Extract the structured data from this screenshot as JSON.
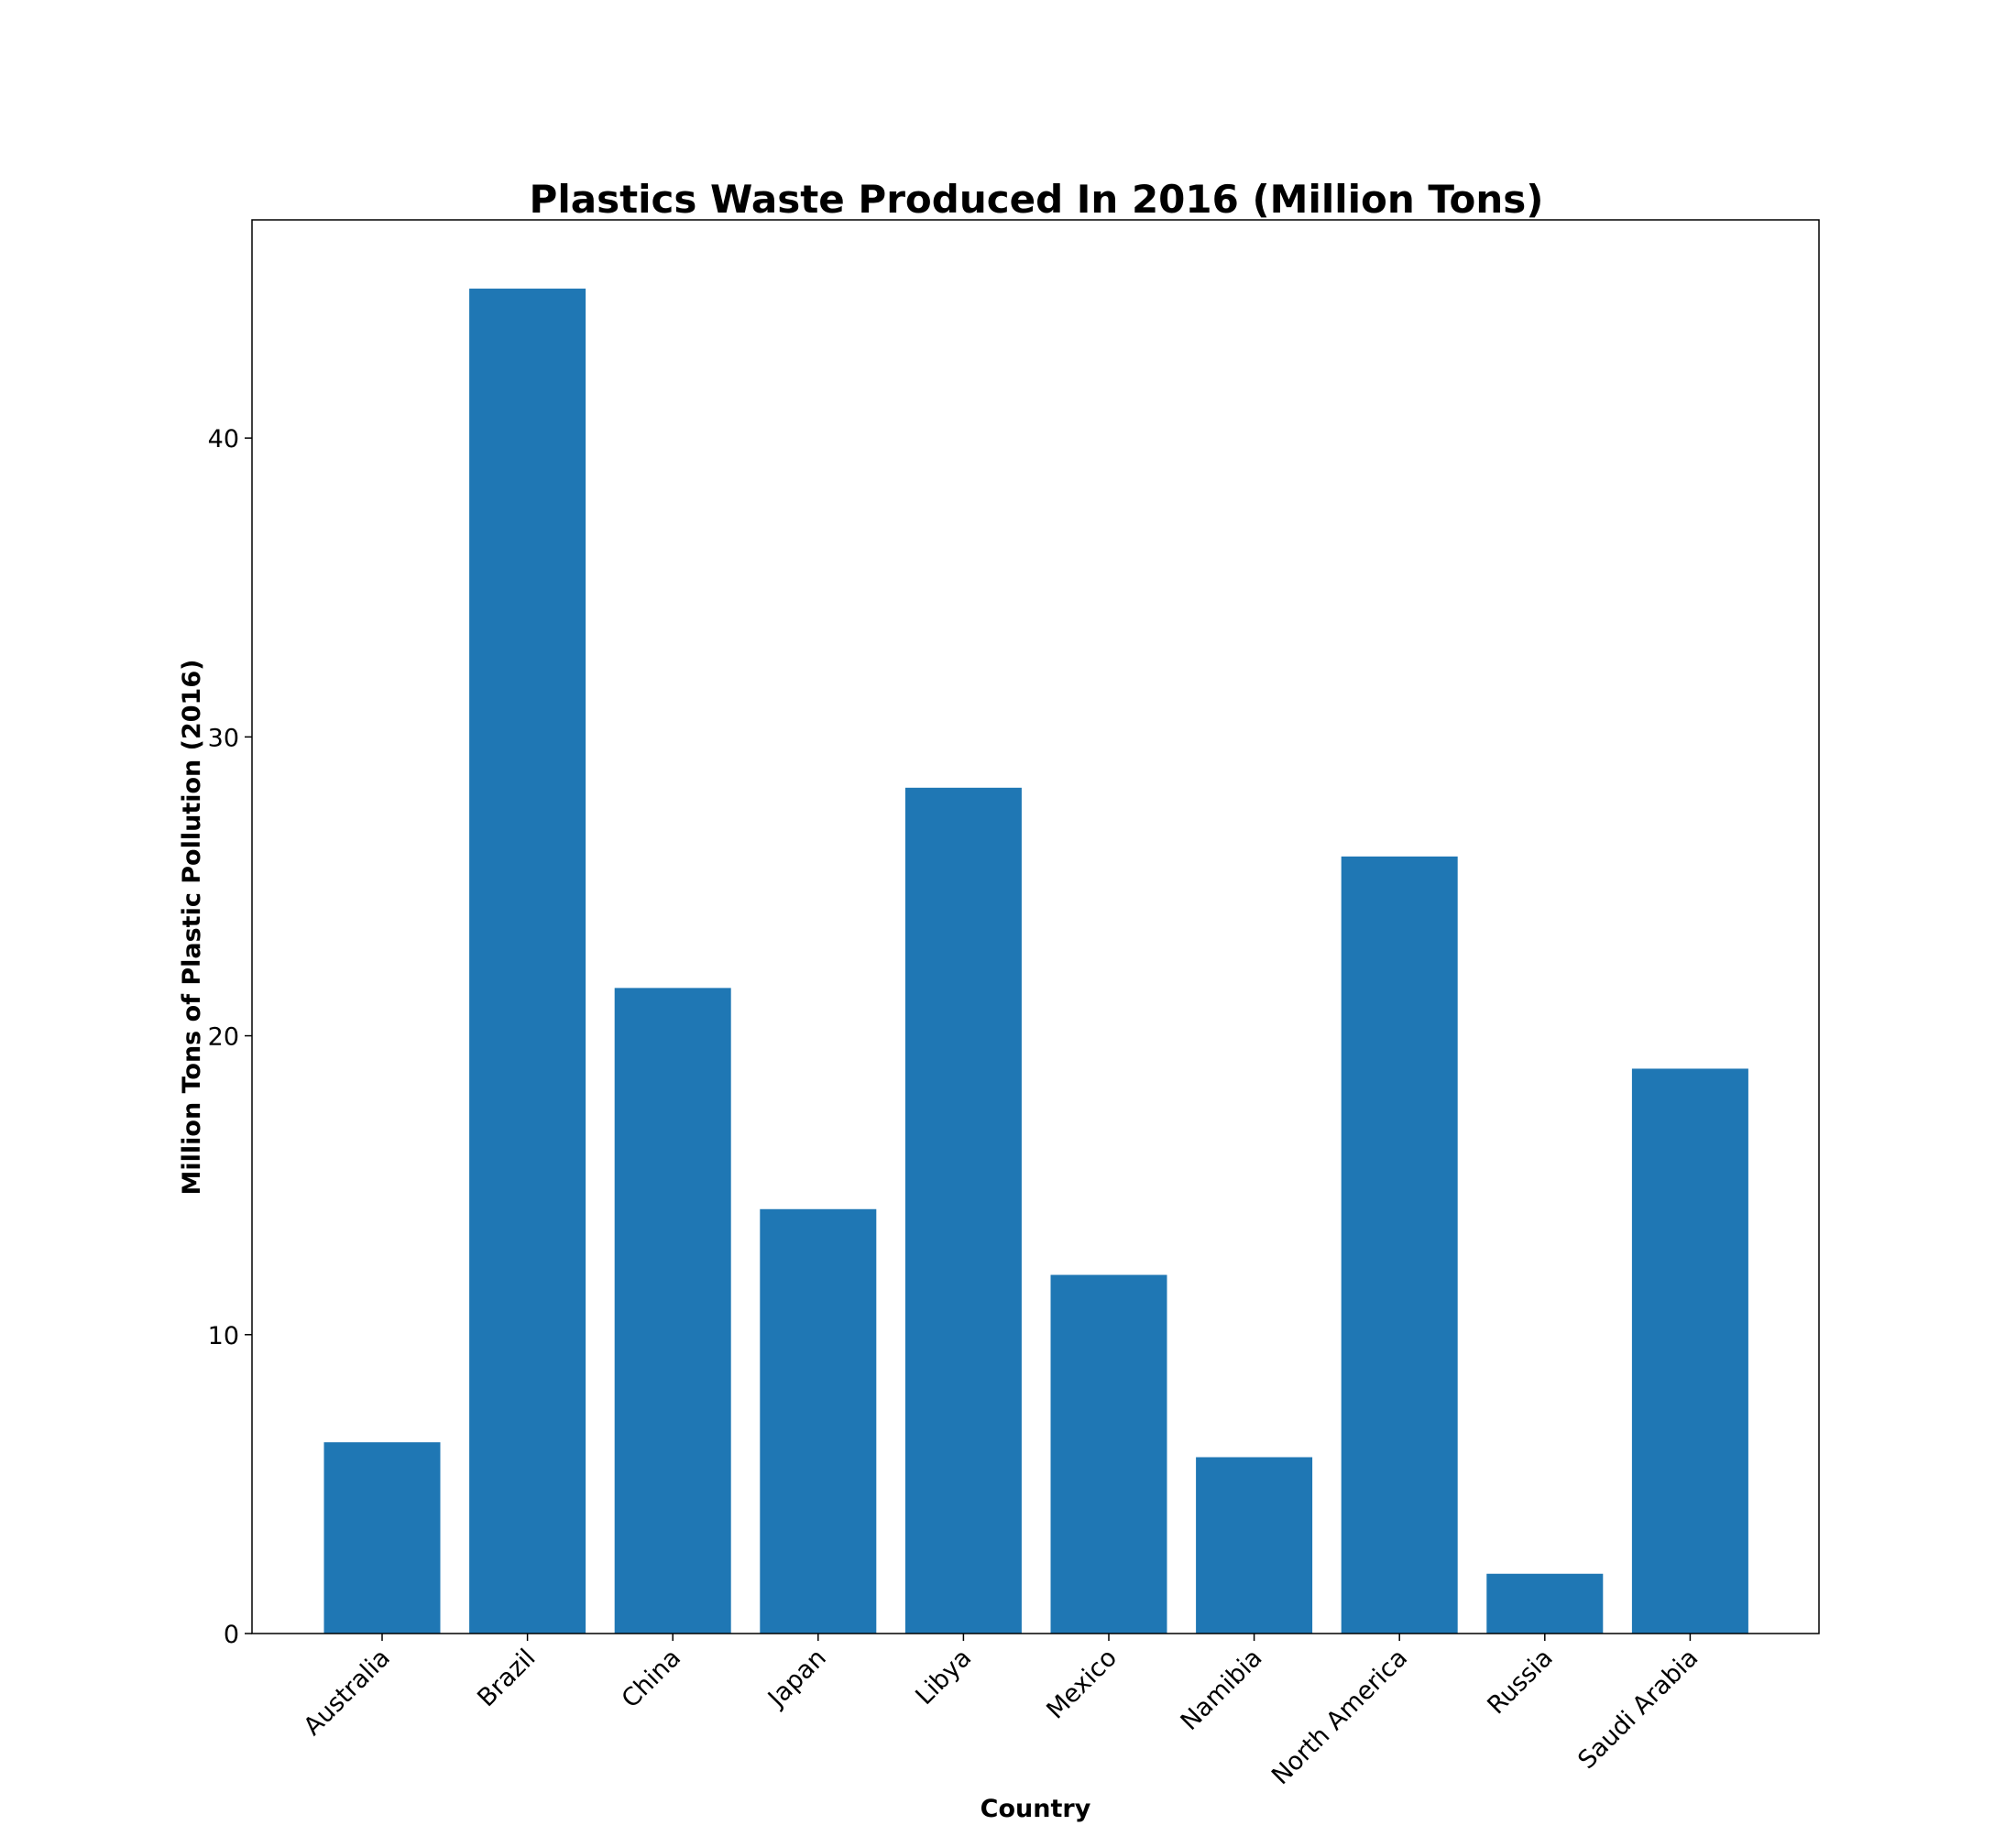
{
  "chart_data": {
    "type": "bar",
    "title": "Plastics Waste Produced In 2016 (Million Tons)",
    "xlabel": "Country",
    "ylabel": "Million Tons of Plastic Pollution (2016)",
    "categories": [
      "Australia",
      "Brazil",
      "China",
      "Japan",
      "Libya",
      "Mexico",
      "Namibia",
      "North America",
      "Russia",
      "Saudi Arabia"
    ],
    "values": [
      6.4,
      45.0,
      21.6,
      14.2,
      28.3,
      12.0,
      5.9,
      26.0,
      2.0,
      18.9
    ],
    "ylim": [
      0,
      47.3
    ],
    "yticks": [
      "0",
      "10",
      "20",
      "30",
      "40"
    ],
    "grid": false,
    "legend": "none",
    "colors": {
      "bar": "#1f77b4"
    }
  }
}
